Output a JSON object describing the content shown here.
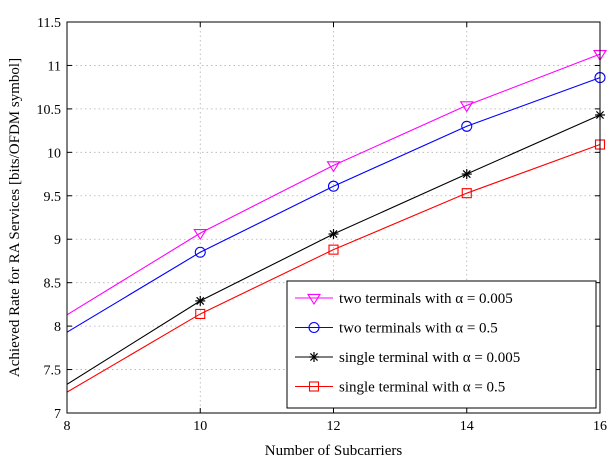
{
  "chart_data": {
    "type": "line",
    "title": "",
    "xlabel": "Number of Subcarriers",
    "ylabel": "Achieved Rate for RA Services [bits/OFDM symbol]",
    "xlim": [
      8,
      16
    ],
    "ylim": [
      7,
      11.5
    ],
    "xticks": [
      8,
      10,
      12,
      14,
      16
    ],
    "yticks": [
      7,
      7.5,
      8,
      8.5,
      9,
      9.5,
      10,
      10.5,
      11,
      11.5
    ],
    "xtick_labels": [
      "8",
      "10",
      "12",
      "14",
      "16"
    ],
    "ytick_labels": [
      "7",
      "7.5",
      "8",
      "8.5",
      "9",
      "9.5",
      "10",
      "10.5",
      "11",
      "11.5"
    ],
    "grid": true,
    "legend_position": "bottom-right",
    "x": [
      8,
      10,
      12,
      14,
      16
    ],
    "series": [
      {
        "name": "two terminals with α = 0.005",
        "color": "#ff00ff",
        "marker": "triangle-down-icon",
        "values": [
          8.13,
          9.07,
          9.85,
          10.54,
          11.13
        ]
      },
      {
        "name": "two terminals with α = 0.5",
        "color": "#0000ff",
        "marker": "circle-icon",
        "values": [
          7.93,
          8.85,
          9.61,
          10.3,
          10.86
        ]
      },
      {
        "name": "single terminal with α = 0.005",
        "color": "#000000",
        "marker": "asterisk-icon",
        "values": [
          7.33,
          8.29,
          9.06,
          9.75,
          10.43
        ]
      },
      {
        "name": "single terminal with α = 0.5",
        "color": "#ff0000",
        "marker": "square-icon",
        "values": [
          7.24,
          8.14,
          8.88,
          9.53,
          10.09
        ]
      }
    ]
  }
}
